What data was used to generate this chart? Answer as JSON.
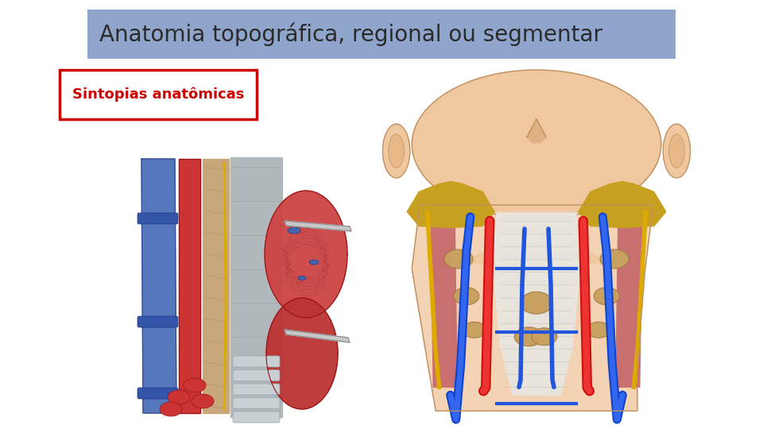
{
  "title": "Anatomia topográfica, regional ou segmentar",
  "subtitle": "Sintopias anatômicas",
  "bg_color": "#ffffff",
  "title_box_color": "#8fa5cc",
  "title_box_border": "#8fa5cc",
  "title_text_color": "#2a2a2a",
  "title_fontsize": 20,
  "subtitle_border_color": "#cc0000",
  "subtitle_text_color": "#cc0000",
  "subtitle_fontsize": 13
}
